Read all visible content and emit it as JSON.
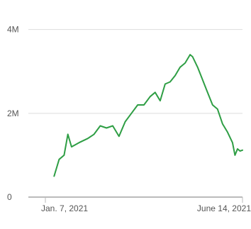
{
  "chart_data": {
    "type": "bar",
    "title": "",
    "xlabel": "",
    "ylabel": "",
    "ylim": [
      0,
      4400000
    ],
    "y_ticks": [
      {
        "value": 0,
        "label": "0"
      },
      {
        "value": 2000000,
        "label": "2M"
      },
      {
        "value": 4000000,
        "label": "4M"
      }
    ],
    "x_start": "2021-01-07",
    "x_end": "2021-06-14",
    "x_tick_labels": [
      {
        "date": "2021-01-07",
        "label": "Jan. 7, 2021"
      },
      {
        "date": "2021-06-14",
        "label": "June 14, 2021"
      }
    ],
    "grid": true,
    "legend": "none",
    "series": [
      {
        "name": "",
        "kind": "bar",
        "values": [
          0,
          0,
          0,
          0,
          0,
          0,
          0,
          0,
          0,
          0,
          0,
          0,
          0,
          0,
          0,
          0,
          0,
          0,
          0,
          0,
          0,
          0,
          0,
          0,
          0,
          0,
          0,
          0,
          0,
          0,
          0,
          0,
          0,
          0,
          0,
          0,
          0,
          0,
          0,
          0,
          0,
          0,
          0,
          0,
          0,
          0,
          0,
          0,
          0,
          0,
          0,
          0,
          0,
          0,
          0,
          0,
          0,
          0,
          0,
          0,
          0,
          0,
          0,
          0,
          0,
          0,
          0,
          0,
          0,
          0,
          0,
          0,
          0,
          0,
          0,
          0,
          0,
          0,
          0,
          0,
          0,
          0,
          0,
          0,
          0,
          0,
          0,
          0,
          0,
          0,
          0,
          0,
          0,
          0,
          0,
          0,
          0,
          0,
          0,
          0,
          0,
          0,
          0,
          0,
          0,
          0,
          0,
          0,
          0,
          0,
          0,
          0,
          0,
          0,
          0,
          0,
          0,
          0,
          0,
          0,
          0,
          0,
          0,
          0,
          0,
          0,
          0,
          0,
          0,
          0,
          0,
          0,
          0,
          0,
          0,
          0,
          0,
          0,
          0,
          0,
          0,
          0,
          0,
          0,
          0,
          0,
          0,
          0,
          0,
          0,
          0,
          0,
          0,
          0,
          0,
          0,
          0,
          0,
          0
        ]
      },
      {
        "name": "",
        "kind": "line",
        "points": [
          [
            "2021-01-14",
            500000
          ],
          [
            "2021-01-18",
            900000
          ],
          [
            "2021-01-22",
            1000000
          ],
          [
            "2021-01-25",
            1500000
          ],
          [
            "2021-01-28",
            1200000
          ],
          [
            "2021-02-03",
            1300000
          ],
          [
            "2021-02-10",
            1400000
          ],
          [
            "2021-02-15",
            1500000
          ],
          [
            "2021-02-20",
            1700000
          ],
          [
            "2021-02-25",
            1650000
          ],
          [
            "2021-03-02",
            1700000
          ],
          [
            "2021-03-07",
            1450000
          ],
          [
            "2021-03-12",
            1800000
          ],
          [
            "2021-03-17",
            2000000
          ],
          [
            "2021-03-22",
            2200000
          ],
          [
            "2021-03-27",
            2200000
          ],
          [
            "2021-04-01",
            2400000
          ],
          [
            "2021-04-05",
            2500000
          ],
          [
            "2021-04-09",
            2300000
          ],
          [
            "2021-04-13",
            2700000
          ],
          [
            "2021-04-17",
            2750000
          ],
          [
            "2021-04-21",
            2900000
          ],
          [
            "2021-04-25",
            3100000
          ],
          [
            "2021-04-29",
            3200000
          ],
          [
            "2021-05-03",
            3400000
          ],
          [
            "2021-05-05",
            3350000
          ],
          [
            "2021-05-09",
            3100000
          ],
          [
            "2021-05-13",
            2800000
          ],
          [
            "2021-05-17",
            2500000
          ],
          [
            "2021-05-21",
            2200000
          ],
          [
            "2021-05-25",
            2100000
          ],
          [
            "2021-05-29",
            1750000
          ],
          [
            "2021-06-02",
            1550000
          ],
          [
            "2021-06-06",
            1300000
          ],
          [
            "2021-06-08",
            1000000
          ],
          [
            "2021-06-10",
            1150000
          ],
          [
            "2021-06-12",
            1100000
          ],
          [
            "2021-06-14",
            1120000
          ]
        ]
      }
    ],
    "colors": {
      "line": "#2e9e44",
      "bars": "#e3e3e3",
      "grid": "#dddddd",
      "axis": "#bbbbbb"
    }
  }
}
